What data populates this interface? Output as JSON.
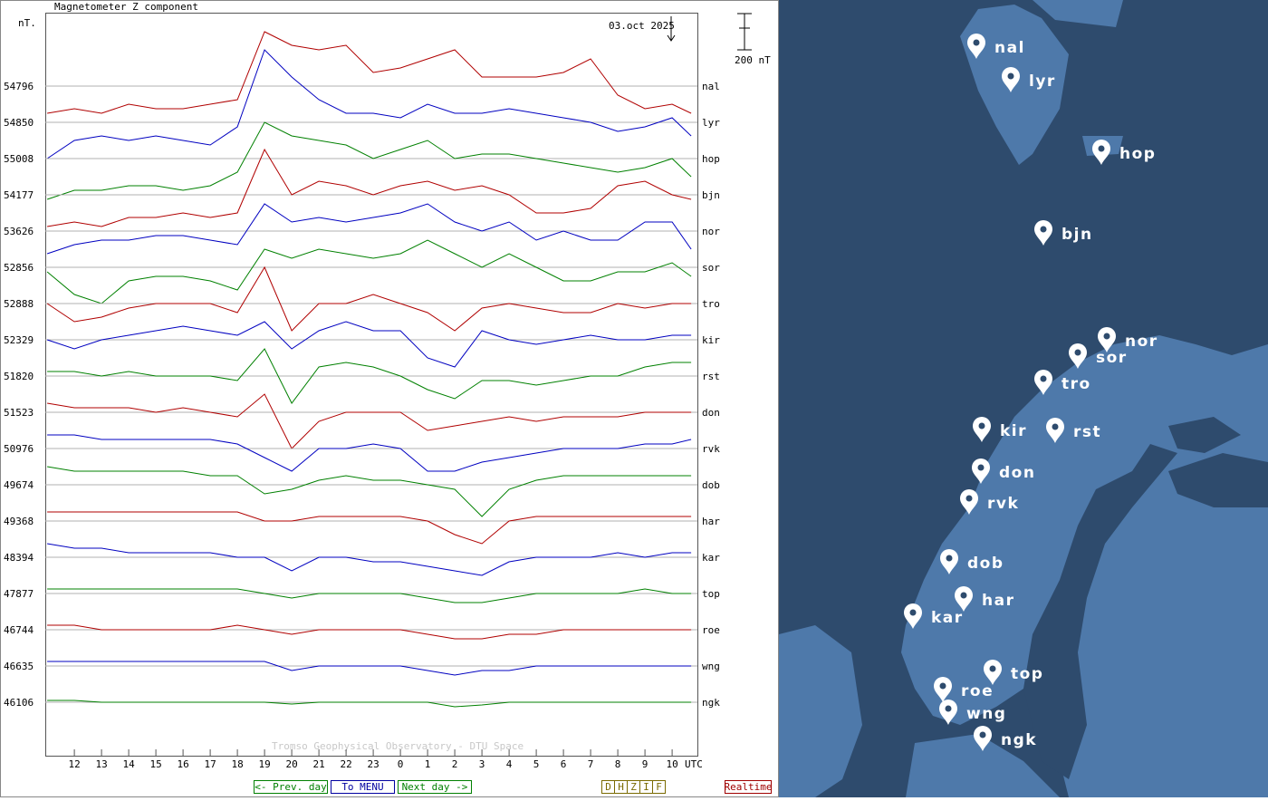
{
  "header": {
    "title": "Magnetometer Z component",
    "unit": "nT.",
    "date": "03.oct 2025",
    "scale": {
      "value": 200,
      "label": "200 nT"
    },
    "credit": "Tromso Geophysical Observatory - DTU Space"
  },
  "chart_data": {
    "type": "line",
    "x_unit": "UTC",
    "x": [
      11,
      12,
      13,
      14,
      15,
      16,
      17,
      18,
      19,
      20,
      21,
      22,
      23,
      24,
      25,
      26,
      27,
      28,
      29,
      30,
      31,
      32,
      33,
      34,
      34.7
    ],
    "xlim": [
      10.93,
      34.93
    ],
    "xticks": [
      12,
      13,
      14,
      15,
      16,
      17,
      18,
      19,
      20,
      21,
      22,
      23,
      {
        "value": 24,
        "label": "0"
      },
      {
        "value": 25,
        "label": "1"
      },
      {
        "value": 26,
        "label": "2"
      },
      {
        "value": 27,
        "label": "3"
      },
      {
        "value": 28,
        "label": "4"
      },
      {
        "value": 29,
        "label": "5"
      },
      {
        "value": 30,
        "label": "6"
      },
      {
        "value": 31,
        "label": "7"
      },
      {
        "value": 32,
        "label": "8"
      },
      {
        "value": 33,
        "label": "9"
      },
      {
        "value": 34,
        "label": "10"
      }
    ],
    "series": [
      {
        "name": "nal",
        "baseline": 54796,
        "color": "#b00000",
        "values": [
          -150,
          -125,
          -150,
          -100,
          -125,
          -125,
          -100,
          -75,
          300,
          225,
          200,
          225,
          75,
          100,
          150,
          200,
          50,
          50,
          50,
          75,
          150,
          -50,
          -125,
          -100,
          -150
        ]
      },
      {
        "name": "lyr",
        "baseline": 54850,
        "color": "#0000c0",
        "values": [
          -200,
          -100,
          -75,
          -100,
          -75,
          -100,
          -125,
          -25,
          400,
          250,
          125,
          50,
          50,
          25,
          100,
          50,
          50,
          75,
          50,
          25,
          0,
          -50,
          -25,
          25,
          -75
        ]
      },
      {
        "name": "hop",
        "baseline": 55008,
        "color": "#008000",
        "values": [
          -225,
          -175,
          -175,
          -150,
          -150,
          -175,
          -150,
          -75,
          200,
          125,
          100,
          75,
          0,
          50,
          100,
          0,
          25,
          25,
          0,
          -25,
          -50,
          -75,
          -50,
          0,
          -100
        ]
      },
      {
        "name": "bjn",
        "baseline": 54177,
        "color": "#b00000",
        "values": [
          -175,
          -150,
          -175,
          -125,
          -125,
          -100,
          -125,
          -100,
          250,
          0,
          75,
          50,
          0,
          50,
          75,
          25,
          50,
          0,
          -100,
          -100,
          -75,
          50,
          75,
          0,
          -25
        ]
      },
      {
        "name": "nor",
        "baseline": 53626,
        "color": "#0000c0",
        "values": [
          -125,
          -75,
          -50,
          -50,
          -25,
          -25,
          -50,
          -75,
          150,
          50,
          75,
          50,
          75,
          100,
          150,
          50,
          0,
          50,
          -50,
          0,
          -50,
          -50,
          50,
          50,
          -100
        ]
      },
      {
        "name": "sor",
        "baseline": 52856,
        "color": "#008000",
        "values": [
          -25,
          -150,
          -200,
          -75,
          -50,
          -50,
          -75,
          -125,
          100,
          50,
          100,
          75,
          50,
          75,
          150,
          75,
          0,
          75,
          0,
          -75,
          -75,
          -25,
          -25,
          25,
          -50
        ]
      },
      {
        "name": "tro",
        "baseline": 52888,
        "color": "#b00000",
        "values": [
          0,
          -100,
          -75,
          -25,
          0,
          0,
          0,
          -50,
          200,
          -150,
          0,
          0,
          50,
          0,
          -50,
          -150,
          -25,
          0,
          -25,
          -50,
          -50,
          0,
          -25,
          0,
          0
        ]
      },
      {
        "name": "kir",
        "baseline": 52329,
        "color": "#0000c0",
        "values": [
          0,
          -50,
          0,
          25,
          50,
          75,
          50,
          25,
          100,
          -50,
          50,
          100,
          50,
          50,
          -100,
          -150,
          50,
          0,
          -25,
          0,
          25,
          0,
          0,
          25,
          25
        ]
      },
      {
        "name": "rst",
        "baseline": 51820,
        "color": "#008000",
        "values": [
          25,
          25,
          0,
          25,
          0,
          0,
          0,
          -25,
          150,
          -150,
          50,
          75,
          50,
          0,
          -75,
          -125,
          -25,
          -25,
          -50,
          -25,
          0,
          0,
          50,
          75,
          75
        ]
      },
      {
        "name": "don",
        "baseline": 51523,
        "color": "#b00000",
        "values": [
          50,
          25,
          25,
          25,
          0,
          25,
          0,
          -25,
          100,
          -200,
          -50,
          0,
          0,
          0,
          -100,
          -75,
          -50,
          -25,
          -50,
          -25,
          -25,
          -25,
          0,
          0,
          0
        ]
      },
      {
        "name": "rvk",
        "baseline": 50976,
        "color": "#0000c0",
        "values": [
          75,
          75,
          50,
          50,
          50,
          50,
          50,
          25,
          -50,
          -125,
          0,
          0,
          25,
          0,
          -125,
          -125,
          -75,
          -50,
          -25,
          0,
          0,
          0,
          25,
          25,
          50
        ]
      },
      {
        "name": "dob",
        "baseline": 49674,
        "color": "#008000",
        "values": [
          100,
          75,
          75,
          75,
          75,
          75,
          50,
          50,
          -50,
          -25,
          25,
          50,
          25,
          25,
          0,
          -25,
          -175,
          -25,
          25,
          50,
          50,
          50,
          50,
          50,
          50
        ]
      },
      {
        "name": "har",
        "baseline": 49368,
        "color": "#b00000",
        "values": [
          50,
          50,
          50,
          50,
          50,
          50,
          50,
          50,
          0,
          0,
          25,
          25,
          25,
          25,
          0,
          -75,
          -125,
          0,
          25,
          25,
          25,
          25,
          25,
          25,
          25
        ]
      },
      {
        "name": "kar",
        "baseline": 48394,
        "color": "#0000c0",
        "values": [
          75,
          50,
          50,
          25,
          25,
          25,
          25,
          0,
          0,
          -75,
          0,
          0,
          -25,
          -25,
          -50,
          -75,
          -100,
          -25,
          0,
          0,
          0,
          25,
          0,
          25,
          25
        ]
      },
      {
        "name": "top",
        "baseline": 47877,
        "color": "#008000",
        "values": [
          25,
          25,
          25,
          25,
          25,
          25,
          25,
          25,
          0,
          -25,
          0,
          0,
          0,
          0,
          -25,
          -50,
          -50,
          -25,
          0,
          0,
          0,
          0,
          25,
          0,
          0
        ]
      },
      {
        "name": "roe",
        "baseline": 46744,
        "color": "#b00000",
        "values": [
          25,
          25,
          0,
          0,
          0,
          0,
          0,
          25,
          0,
          -25,
          0,
          0,
          0,
          0,
          -25,
          -50,
          -50,
          -25,
          -25,
          0,
          0,
          0,
          0,
          0,
          0
        ]
      },
      {
        "name": "wng",
        "baseline": 46635,
        "color": "#0000c0",
        "values": [
          25,
          25,
          25,
          25,
          25,
          25,
          25,
          25,
          25,
          -25,
          0,
          0,
          0,
          0,
          -25,
          -50,
          -25,
          -25,
          0,
          0,
          0,
          0,
          0,
          0,
          0
        ]
      },
      {
        "name": "ngk",
        "baseline": 46106,
        "color": "#008000",
        "values": [
          10,
          10,
          0,
          0,
          0,
          0,
          0,
          0,
          0,
          -10,
          0,
          0,
          0,
          0,
          0,
          -25,
          -15,
          0,
          0,
          0,
          0,
          0,
          0,
          0,
          0
        ]
      }
    ]
  },
  "nav": {
    "prev": "<- Prev. day",
    "menu": "To MENU",
    "next": "Next day ->",
    "components": [
      "D",
      "H",
      "Z",
      "I",
      "F"
    ],
    "realtime": "Realtime"
  }
}
